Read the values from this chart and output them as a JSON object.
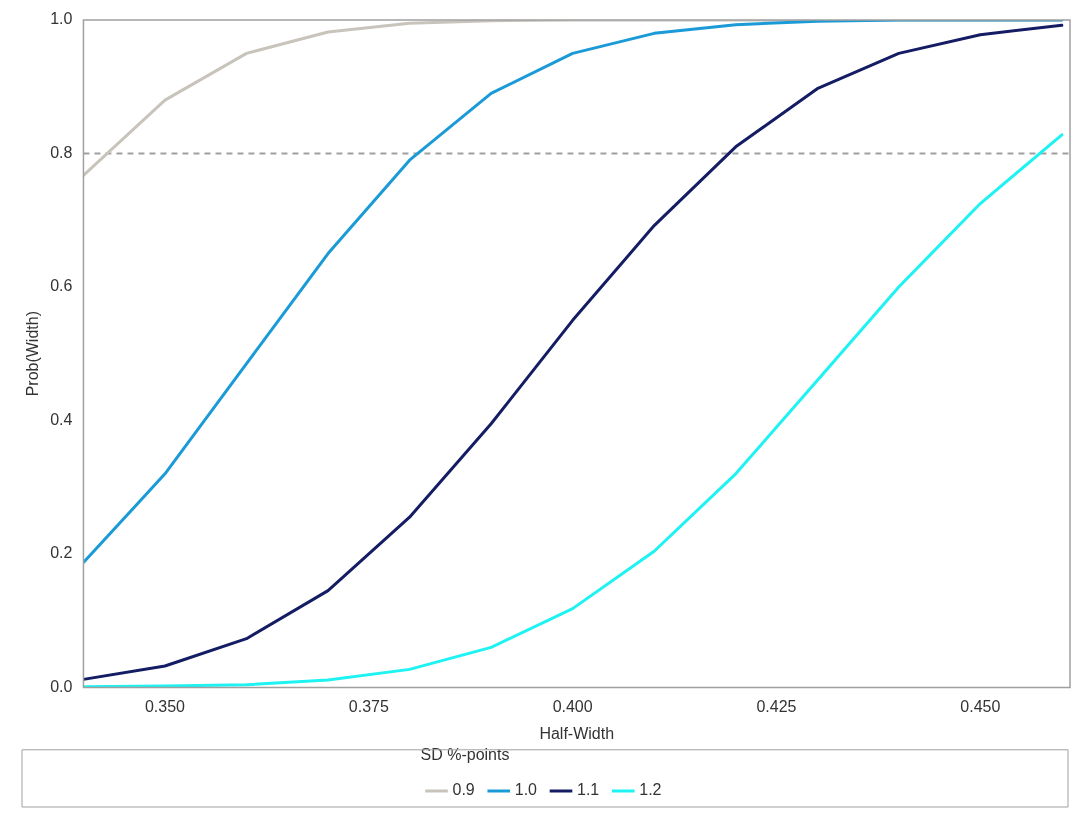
{
  "chart_data": {
    "type": "line",
    "xlabel": "Half-Width",
    "ylabel": "Prob(Width)",
    "legend_title": "SD %-points",
    "legend": "bottom",
    "grid": false,
    "marker": "none",
    "line_style": "solid",
    "x": [
      0.34,
      0.35,
      0.36,
      0.37,
      0.38,
      0.39,
      0.4,
      0.41,
      0.42,
      0.43,
      0.44,
      0.45,
      0.46
    ],
    "xlim": [
      0.34,
      0.461
    ],
    "xticks": [
      {
        "value": 0.35,
        "label": "0.350"
      },
      {
        "value": 0.375,
        "label": "0.375"
      },
      {
        "value": 0.4,
        "label": "0.400"
      },
      {
        "value": 0.425,
        "label": "0.425"
      },
      {
        "value": 0.45,
        "label": "0.450"
      }
    ],
    "ylim": [
      0,
      1
    ],
    "yticks": [
      {
        "value": 0,
        "label": "0.0"
      },
      {
        "value": 0.2,
        "label": "0.2"
      },
      {
        "value": 0.4,
        "label": "0.4"
      },
      {
        "value": 0.6,
        "label": "0.6"
      },
      {
        "value": 0.8,
        "label": "0.8"
      },
      {
        "value": 1,
        "label": "1.0"
      }
    ],
    "ref_lines": [
      {
        "axis": "y",
        "value": 0.8,
        "color": "#a0a0a0",
        "line_style": "dashed"
      }
    ],
    "series": [
      {
        "name": "0.9",
        "color": "#c8c4bc",
        "values": [
          0.767,
          0.88,
          0.95,
          0.982,
          0.995,
          0.999,
          1,
          1,
          1,
          1,
          1,
          1,
          1
        ]
      },
      {
        "name": "1.0",
        "color": "#1a9ad6",
        "values": [
          0.187,
          0.32,
          0.485,
          0.65,
          0.79,
          0.89,
          0.95,
          0.98,
          0.993,
          0.998,
          1,
          1,
          1
        ]
      },
      {
        "name": "1.1",
        "color": "#141c64",
        "values": [
          0.012,
          0.032,
          0.073,
          0.145,
          0.255,
          0.395,
          0.55,
          0.692,
          0.81,
          0.897,
          0.95,
          0.978,
          0.992
        ]
      },
      {
        "name": "1.2",
        "color": "#1ef2f2",
        "values": [
          0.001,
          0.002,
          0.004,
          0.011,
          0.027,
          0.06,
          0.118,
          0.204,
          0.32,
          0.46,
          0.6,
          0.725,
          0.828
        ]
      }
    ]
  }
}
